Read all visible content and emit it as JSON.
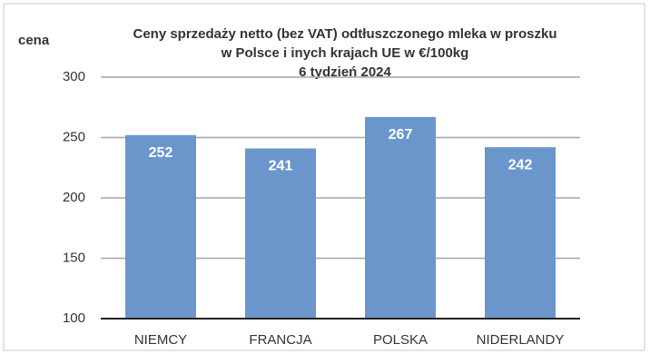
{
  "chart_data": {
    "type": "bar",
    "title": [
      "Ceny sprzedaży netto  (bez VAT) odtłuszczonego mleka w proszku",
      "w Polsce i inych krajach UE w €/100kg",
      "6  tydzień 2024"
    ],
    "y_label": "cena",
    "categories": [
      "NIEMCY",
      "FRANCJA",
      "POLSKA",
      "NIDERLANDY"
    ],
    "values": [
      252,
      241,
      267,
      242
    ],
    "color": "#6b96cc",
    "ylim": [
      100,
      300
    ],
    "yticks": [
      100,
      150,
      200,
      250,
      300
    ],
    "grid": true
  }
}
